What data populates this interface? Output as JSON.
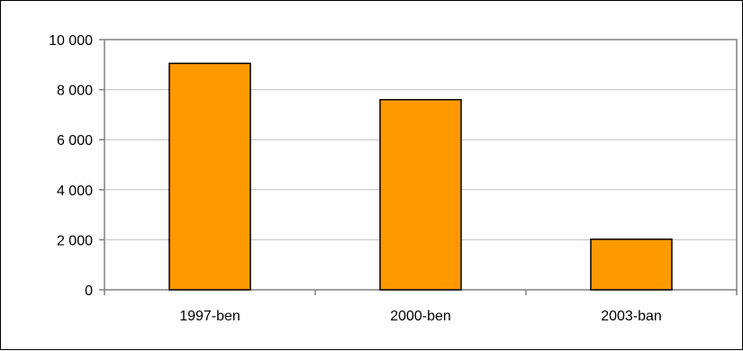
{
  "chart_data": {
    "type": "bar",
    "categories": [
      "1997-ben",
      "2000-ben",
      "2003-ban"
    ],
    "values": [
      9050,
      7600,
      2020
    ],
    "ylim": [
      0,
      10000
    ],
    "yticks": [
      0,
      2000,
      4000,
      6000,
      8000,
      10000
    ],
    "ytick_labels": [
      "0",
      "2 000",
      "4 000",
      "6 000",
      "8 000",
      "10 000"
    ],
    "grid": true,
    "legend": "none",
    "title": "",
    "xlabel": "",
    "ylabel": "",
    "colors": {
      "bar_fill": "#FF9900",
      "bar_stroke": "#000000",
      "gridline": "#C0C0C0",
      "plot_border": "#808080",
      "axis": "#808080"
    }
  }
}
